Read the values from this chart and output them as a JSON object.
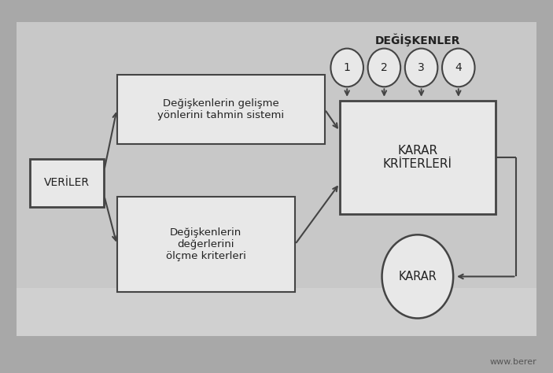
{
  "bg_outer": "#a8a8a8",
  "bg_card": "#c8c8c8",
  "box_face": "#e8e8e8",
  "box_edge": "#444444",
  "text_color": "#222222",
  "label_veriler": "VERİLER",
  "label_box1": "Değişkenlerin gelişme\nyönlerini tahmin sistemi",
  "label_box2": "Değişkenlerin\ndeğerlerini\nölçme kriterleri",
  "label_kk": "KARAR\nKRİTERLERİ",
  "label_karar": "KARAR",
  "label_degiskenler": "DEĞİŞKENLER",
  "circles": [
    "1",
    "2",
    "3",
    "4"
  ],
  "watermark": "www.berer"
}
